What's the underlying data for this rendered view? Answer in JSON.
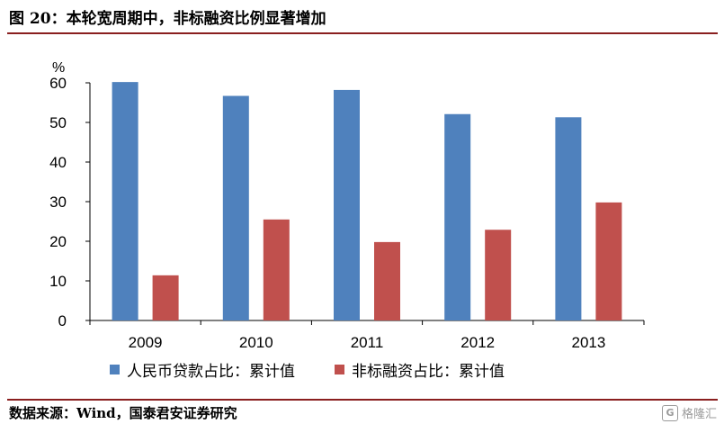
{
  "header": {
    "title": "图 20：本轮宽周期中，非标融资比例显著增加"
  },
  "footer": {
    "source": "数据来源：Wind，国泰君安证券研究",
    "watermark": "格隆汇"
  },
  "chart_data": {
    "type": "bar",
    "title": "",
    "ylabel": "%",
    "xlabel": "",
    "ylim": [
      0,
      60
    ],
    "yticks": [
      0,
      10,
      20,
      30,
      40,
      50,
      60
    ],
    "categories": [
      "2009",
      "2010",
      "2011",
      "2012",
      "2013"
    ],
    "series": [
      {
        "name": "人民币贷款占比：累计值",
        "color": "#4f81bd",
        "values": [
          60.2,
          56.7,
          58.2,
          52.1,
          51.3
        ]
      },
      {
        "name": "非标融资占比：累计值",
        "color": "#c0504d",
        "values": [
          11.4,
          25.5,
          19.8,
          22.9,
          29.8
        ]
      }
    ],
    "legend_position": "bottom",
    "grid": false
  }
}
